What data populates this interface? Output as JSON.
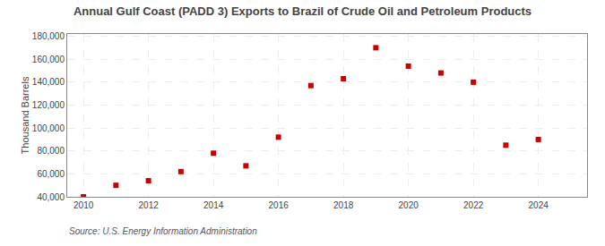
{
  "chart_data": {
    "type": "scatter",
    "title": "Annual Gulf Coast (PADD 3) Exports to Brazil of Crude Oil and Petroleum Products",
    "ylabel": "Thousand Barrels",
    "annotations": [
      "Source: U.S. Energy Information Administration"
    ],
    "x": [
      2010,
      2011,
      2012,
      2013,
      2014,
      2015,
      2016,
      2017,
      2018,
      2019,
      2020,
      2021,
      2022,
      2023,
      2024
    ],
    "values": [
      40000,
      50000,
      54000,
      62000,
      78000,
      67000,
      92000,
      137000,
      143000,
      170000,
      154000,
      148000,
      140000,
      85000,
      90000
    ],
    "color": "#cc0000",
    "marker": "square",
    "xlim": [
      2009.5,
      2025.5
    ],
    "ylim": [
      40000,
      182000
    ],
    "xticks": [
      2010,
      2012,
      2014,
      2016,
      2018,
      2020,
      2022,
      2024
    ],
    "yticks": [
      {
        "value": 40000,
        "label": "40,000"
      },
      {
        "value": 60000,
        "label": "60,000"
      },
      {
        "value": 80000,
        "label": "80,000"
      },
      {
        "value": 100000,
        "label": "100,000"
      },
      {
        "value": 120000,
        "label": "120,000"
      },
      {
        "value": 140000,
        "label": "140,000"
      },
      {
        "value": 160000,
        "label": "160,000"
      },
      {
        "value": 180000,
        "label": "180,000"
      }
    ],
    "grid": true
  }
}
